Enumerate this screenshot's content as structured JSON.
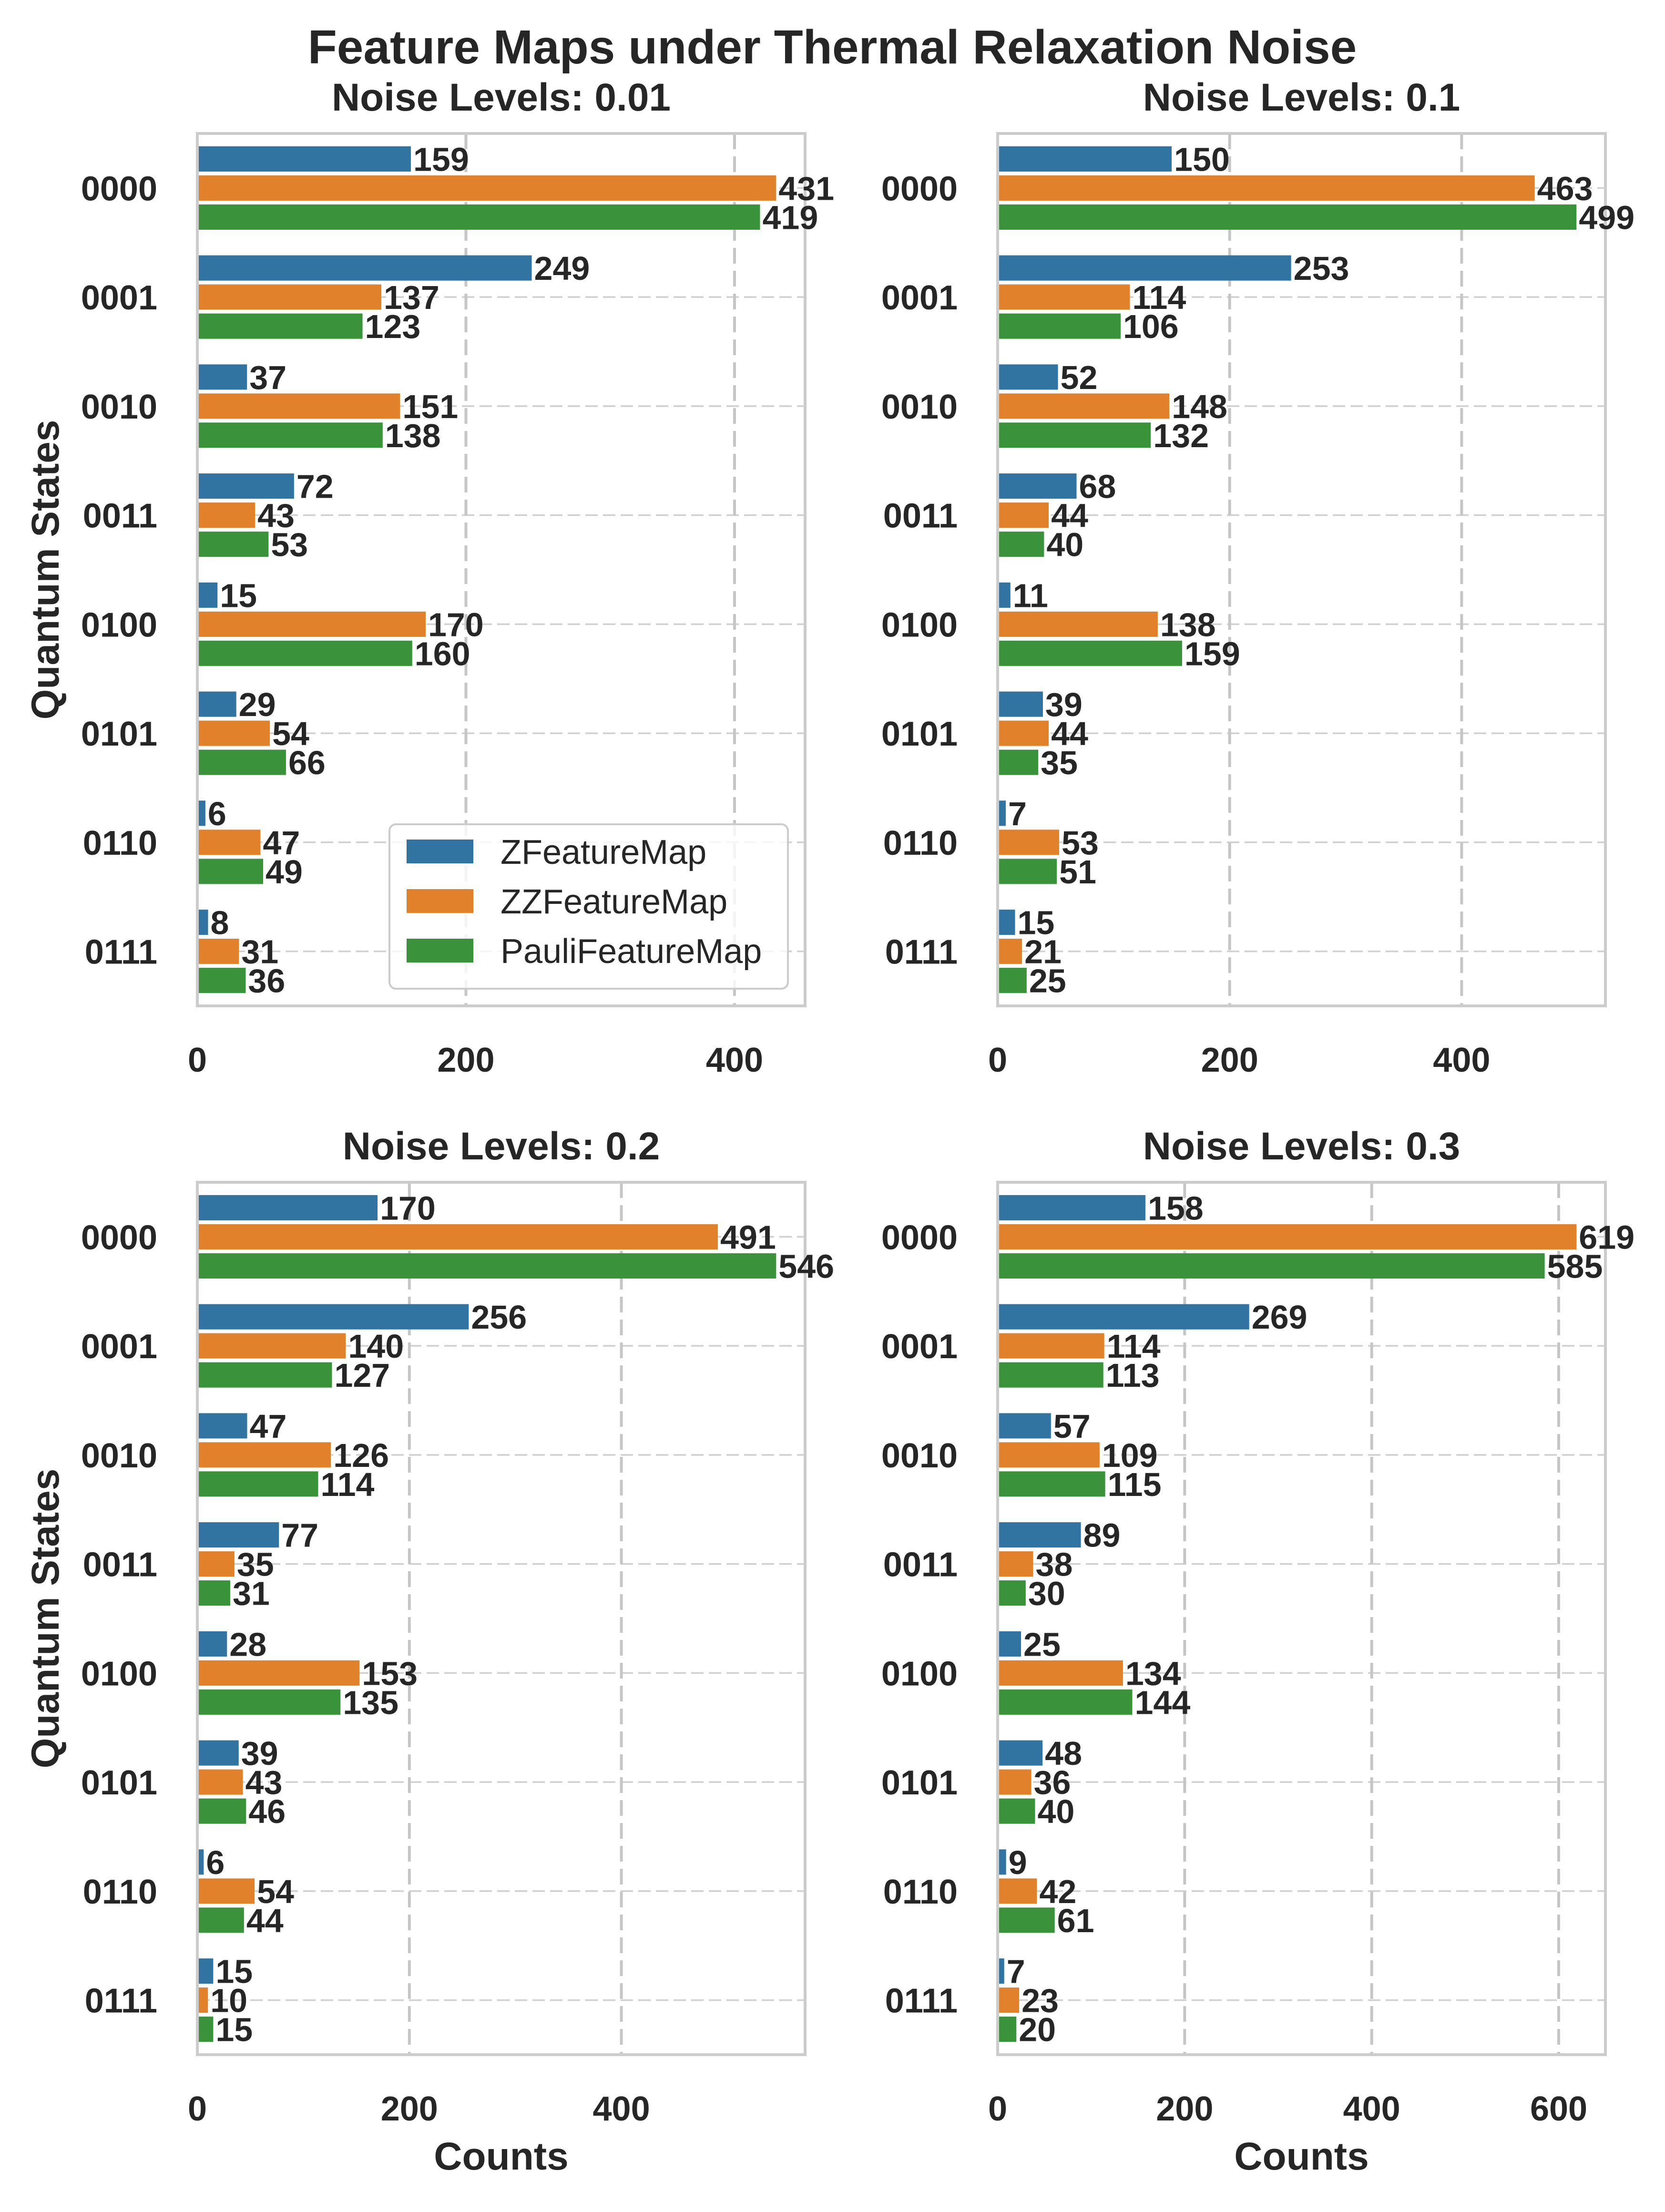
{
  "figure": {
    "title": "Feature Maps under Thermal Relaxation Noise"
  },
  "chart_data": [
    {
      "type": "bar",
      "orientation": "horizontal",
      "title": "Noise Levels: 0.01",
      "xlabel": "",
      "ylabel": "Quantum States",
      "categories": [
        "0000",
        "0001",
        "0010",
        "0011",
        "0100",
        "0101",
        "0110",
        "0111"
      ],
      "series": [
        {
          "name": "ZFeatureMap",
          "color": "#3274a1",
          "values": [
            159,
            249,
            37,
            72,
            15,
            29,
            6,
            8
          ]
        },
        {
          "name": "ZZFeatureMap",
          "color": "#e1812c",
          "values": [
            431,
            137,
            151,
            43,
            170,
            54,
            47,
            31
          ]
        },
        {
          "name": "PauliFeatureMap",
          "color": "#3a923a",
          "values": [
            419,
            123,
            138,
            53,
            160,
            66,
            49,
            36
          ]
        }
      ],
      "xlim": [
        0,
        452.55
      ],
      "xticks": [
        0,
        200,
        400
      ],
      "grid": true,
      "legend": "lower right"
    },
    {
      "type": "bar",
      "orientation": "horizontal",
      "title": "Noise Levels: 0.1",
      "xlabel": "",
      "ylabel": "",
      "categories": [
        "0000",
        "0001",
        "0010",
        "0011",
        "0100",
        "0101",
        "0110",
        "0111"
      ],
      "series": [
        {
          "name": "ZFeatureMap",
          "color": "#3274a1",
          "values": [
            150,
            253,
            52,
            68,
            11,
            39,
            7,
            15
          ]
        },
        {
          "name": "ZZFeatureMap",
          "color": "#e1812c",
          "values": [
            463,
            114,
            148,
            44,
            138,
            44,
            53,
            21
          ]
        },
        {
          "name": "PauliFeatureMap",
          "color": "#3a923a",
          "values": [
            499,
            106,
            132,
            40,
            159,
            35,
            51,
            25
          ]
        }
      ],
      "xlim": [
        0,
        523.95
      ],
      "xticks": [
        0,
        200,
        400
      ],
      "grid": true,
      "legend": null
    },
    {
      "type": "bar",
      "orientation": "horizontal",
      "title": "Noise Levels: 0.2",
      "xlabel": "Counts",
      "ylabel": "Quantum States",
      "categories": [
        "0000",
        "0001",
        "0010",
        "0011",
        "0100",
        "0101",
        "0110",
        "0111"
      ],
      "series": [
        {
          "name": "ZFeatureMap",
          "color": "#3274a1",
          "values": [
            170,
            256,
            47,
            77,
            28,
            39,
            6,
            15
          ]
        },
        {
          "name": "ZZFeatureMap",
          "color": "#e1812c",
          "values": [
            491,
            140,
            126,
            35,
            153,
            43,
            54,
            10
          ]
        },
        {
          "name": "PauliFeatureMap",
          "color": "#3a923a",
          "values": [
            546,
            127,
            114,
            31,
            135,
            46,
            44,
            15
          ]
        }
      ],
      "xlim": [
        0,
        573.3
      ],
      "xticks": [
        0,
        200,
        400
      ],
      "grid": true,
      "legend": null
    },
    {
      "type": "bar",
      "orientation": "horizontal",
      "title": "Noise Levels: 0.3",
      "xlabel": "Counts",
      "ylabel": "",
      "categories": [
        "0000",
        "0001",
        "0010",
        "0011",
        "0100",
        "0101",
        "0110",
        "0111"
      ],
      "series": [
        {
          "name": "ZFeatureMap",
          "color": "#3274a1",
          "values": [
            158,
            269,
            57,
            89,
            25,
            48,
            9,
            7
          ]
        },
        {
          "name": "ZZFeatureMap",
          "color": "#e1812c",
          "values": [
            619,
            114,
            109,
            38,
            134,
            36,
            42,
            23
          ]
        },
        {
          "name": "PauliFeatureMap",
          "color": "#3a923a",
          "values": [
            585,
            113,
            115,
            30,
            144,
            40,
            61,
            20
          ]
        }
      ],
      "xlim": [
        0,
        649.95
      ],
      "xticks": [
        0,
        200,
        400,
        600
      ],
      "grid": true,
      "legend": null
    }
  ]
}
